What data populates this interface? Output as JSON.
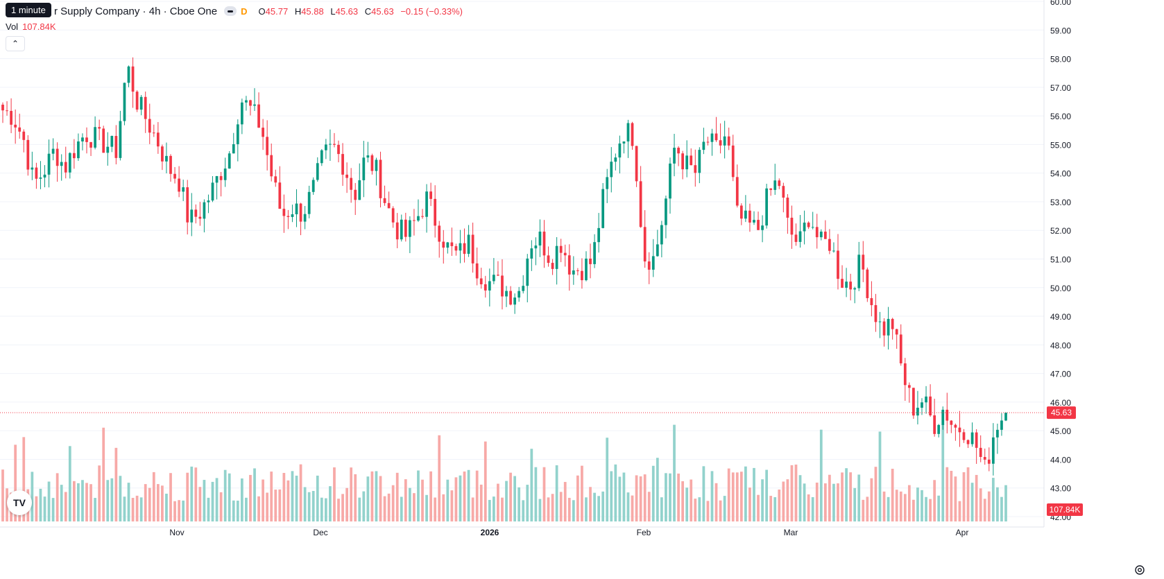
{
  "header": {
    "interval_tooltip": "1 minute",
    "symbol_title": "r Supply Company · 4h · Cboe One",
    "delay_flag": "D",
    "ohlc": {
      "o_label": "O",
      "o": "45.77",
      "h_label": "H",
      "h": "45.88",
      "l_label": "L",
      "l": "45.63",
      "c_label": "C",
      "c": "45.63",
      "change": "−0.15 (−0.33%)"
    },
    "volume_label": "Vol",
    "volume_value": "107.84K",
    "collapse_icon": "chevron-up-icon"
  },
  "colors": {
    "up": "#089981",
    "down": "#f23645",
    "vol_up": "#92d2cc",
    "vol_down": "#f7a9a7",
    "grid": "#f0f3fa",
    "text": "#131722"
  },
  "chart_data": {
    "type": "candlestick",
    "price_axis": {
      "min": 42,
      "max": 60,
      "ticks": [
        "42.00",
        "43.00",
        "44.00",
        "45.00",
        "46.00",
        "47.00",
        "48.00",
        "49.00",
        "50.00",
        "51.00",
        "52.00",
        "53.00",
        "54.00",
        "55.00",
        "56.00",
        "57.00",
        "58.00",
        "59.00",
        "60.00"
      ]
    },
    "time_axis_labels": [
      "Nov",
      "Dec",
      "2026",
      "Feb",
      "Mar",
      "Apr"
    ],
    "last_price": "45.63",
    "last_volume": "107.84K",
    "daily_anchor_closes": [
      56.2,
      56.0,
      55.2,
      53.6,
      54.1,
      54.8,
      54.2,
      54.9,
      55.4,
      55.2,
      55.0,
      54.8,
      57.8,
      56.5,
      55.8,
      55.1,
      54.2,
      53.8,
      52.3,
      52.6,
      53.2,
      54.0,
      54.8,
      56.6,
      56.2,
      55.6,
      53.9,
      52.5,
      52.8,
      52.6,
      53.4,
      54.6,
      54.9,
      54.3,
      53.2,
      54.5,
      54.2,
      53.0,
      52.1,
      51.8,
      52.4,
      53.1,
      52.2,
      51.4,
      51.1,
      51.6,
      50.6,
      50.2,
      50.1,
      49.8,
      49.9,
      51.6,
      51.7,
      51.0,
      51.6,
      50.6,
      50.7,
      50.9,
      53.0,
      54.5,
      55.5,
      55.3,
      51.1,
      51.0,
      52.8,
      55.0,
      54.3,
      54.0,
      55.2,
      54.8,
      55.4,
      52.5,
      52.2,
      52.0,
      53.2,
      53.8,
      52.0,
      51.5,
      52.6,
      51.5,
      51.6,
      50.3,
      50.1,
      50.9,
      49.5,
      48.5,
      48.8,
      47.0,
      45.8,
      46.1,
      45.2,
      45.8,
      45.1,
      45.1,
      44.6,
      43.6,
      45.2,
      45.63
    ],
    "volume_range": {
      "min": 0,
      "max": 780
    }
  }
}
